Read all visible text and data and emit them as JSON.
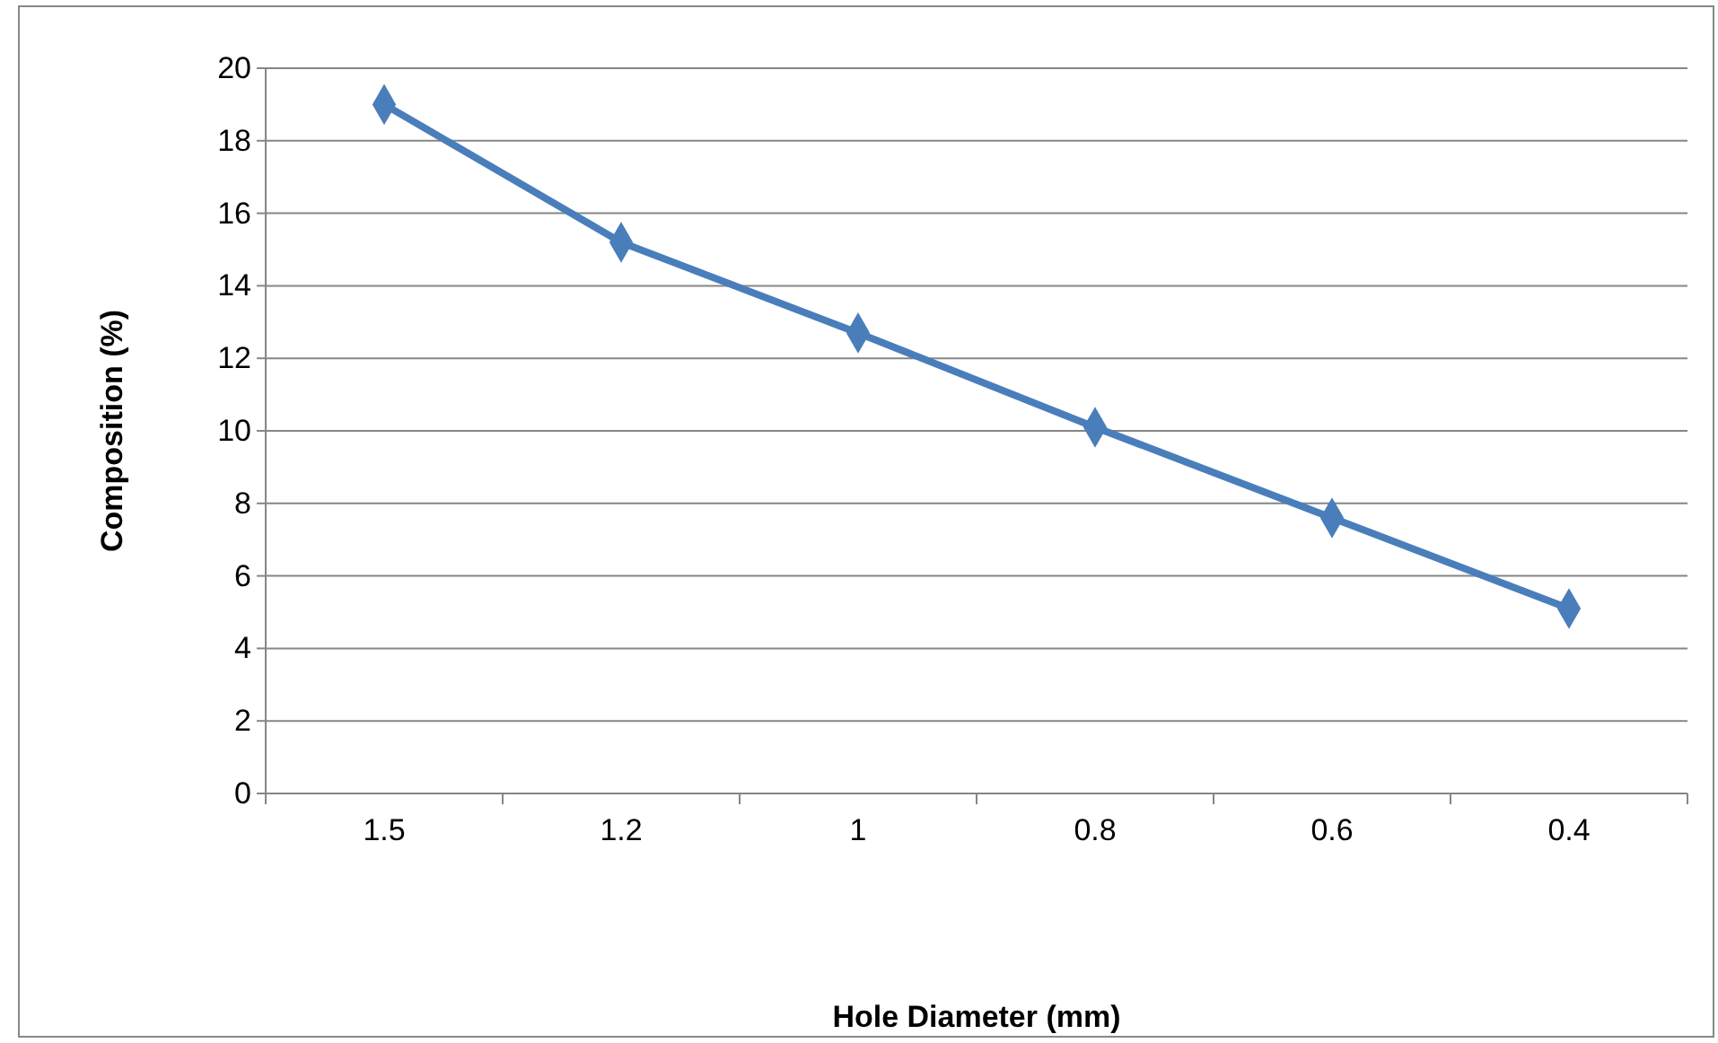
{
  "chart_data": {
    "type": "line",
    "xlabel": "Hole Diameter (mm)",
    "ylabel": "Composition (%)",
    "categories": [
      "1.5",
      "1.2",
      "1",
      "0.8",
      "0.6",
      "0.4"
    ],
    "series": [
      {
        "color": "#4a7ebb",
        "values": [
          19,
          15.2,
          12.7,
          10.1,
          7.6,
          5.1
        ]
      }
    ],
    "ylim": [
      0,
      20
    ],
    "yticks": [
      0,
      2,
      4,
      6,
      8,
      10,
      12,
      14,
      16,
      18,
      20
    ],
    "grid": "y",
    "marker": "diamond",
    "line_style": "solid"
  }
}
